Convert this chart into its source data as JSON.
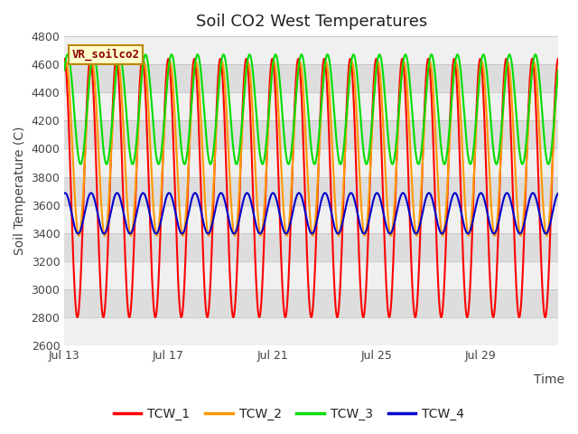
{
  "title": "Soil CO2 West Temperatures",
  "ylabel": "Soil Temperature (C)",
  "xlabel": "Time",
  "annotation": "VR_soilco2",
  "ylim": [
    2600,
    4800
  ],
  "yticks": [
    2600,
    2800,
    3000,
    3200,
    3400,
    3600,
    3800,
    4000,
    4200,
    4400,
    4600,
    4800
  ],
  "xtick_labels": [
    "Jul 13",
    "Jul 17",
    "Jul 21",
    "Jul 25",
    "Jul 29"
  ],
  "xtick_positions": [
    0,
    4,
    8,
    12,
    16
  ],
  "line_colors": [
    "#ff0000",
    "#ff9900",
    "#00dd00",
    "#0000cc"
  ],
  "line_names": [
    "TCW_1",
    "TCW_2",
    "TCW_3",
    "TCW_4"
  ],
  "background_color": "#ffffff",
  "plot_bg_color": "#dddddd",
  "band_color": "#f0f0f0",
  "title_fontsize": 13,
  "axis_label_fontsize": 10,
  "tick_fontsize": 9,
  "legend_fontsize": 10,
  "n_days": 19,
  "period_days": 1.0,
  "tcw1_mean": 3720,
  "tcw1_amp": 920,
  "tcw1_phase": 1.57,
  "tcw2_mean": 4000,
  "tcw2_amp": 620,
  "tcw2_phase": 1.2,
  "tcw3_mean": 4280,
  "tcw3_amp": 390,
  "tcw3_phase": 0.8,
  "tcw4_mean": 3540,
  "tcw4_amp": 145,
  "tcw4_phase": 1.4
}
